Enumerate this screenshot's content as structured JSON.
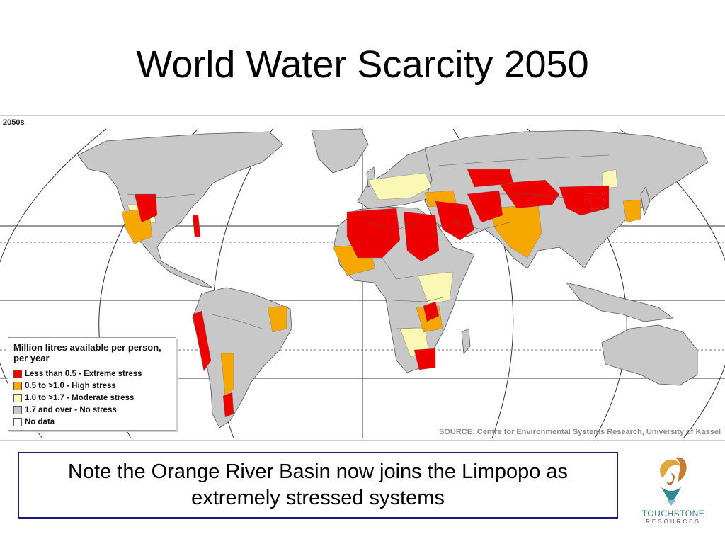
{
  "slide": {
    "title": "World Water Scarcity 2050"
  },
  "map": {
    "period_label": "2050s",
    "source": "SOURCE: Centre for Environmental Systems Research, University of Kassel",
    "colors": {
      "ocean": "#ffffff",
      "land": "#c8c8c8",
      "extreme": "#ee0000",
      "high": "#f7a800",
      "moderate": "#fbf7b4",
      "no_stress": "#c8c8c8",
      "no_data": "#ffffff"
    },
    "legend": {
      "title": "Million litres available per person, per year",
      "items": [
        {
          "label": "Less than 0.5 - Extreme stress",
          "color": "#ee0000"
        },
        {
          "label": "0.5 to >1.0 - High stress",
          "color": "#f7a800"
        },
        {
          "label": "1.0 to >1.7 - Moderate stress",
          "color": "#fbf7b4"
        },
        {
          "label": "1.7 and over - No stress",
          "color": "#c8c8c8"
        },
        {
          "label": "No data",
          "color": "#ffffff"
        }
      ]
    }
  },
  "note": {
    "text": "Note the Orange River Basin now joins the Limpopo as extremely stressed systems"
  },
  "logo": {
    "name": "TOUCHSTONE",
    "subtitle": "RESOURCES"
  }
}
